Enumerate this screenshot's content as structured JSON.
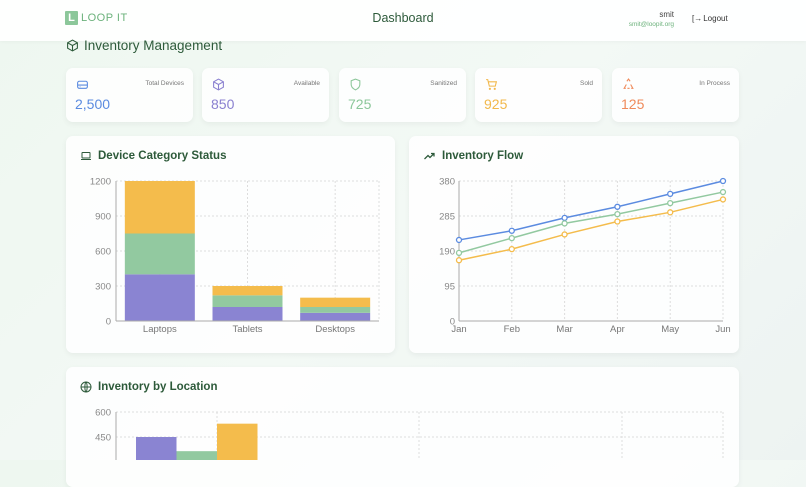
{
  "header": {
    "logo_letter": "L",
    "logo_text": "LOOP IT",
    "title": "Dashboard",
    "user_name": "smit",
    "user_email": "smit@loopit.org",
    "logout_label": "Logout"
  },
  "section_title": "Inventory Management",
  "stats": [
    {
      "label": "Total Devices",
      "value": "2,500",
      "color": "#5b8be0",
      "icon": "hard-drive-icon"
    },
    {
      "label": "Available",
      "value": "850",
      "color": "#8a80d0",
      "icon": "package-icon"
    },
    {
      "label": "Sanitized",
      "value": "725",
      "color": "#8cc79a",
      "icon": "shield-icon"
    },
    {
      "label": "Sold",
      "value": "925",
      "color": "#f2b84b",
      "icon": "cart-icon"
    },
    {
      "label": "In Process",
      "value": "125",
      "color": "#ef8a5a",
      "icon": "recycle-icon"
    }
  ],
  "chart_data": [
    {
      "type": "bar",
      "stacked": true,
      "title": "Device Category Status",
      "categories": [
        "Laptops",
        "Tablets",
        "Desktops"
      ],
      "ylim": [
        0,
        1200
      ],
      "yticks": [
        "0",
        "300",
        "600",
        "900",
        "1200"
      ],
      "grid": true,
      "series": [
        {
          "color": "#8a84d2",
          "values": [
            400,
            120,
            70
          ]
        },
        {
          "color": "#92c9a0",
          "values": [
            350,
            100,
            50
          ]
        },
        {
          "color": "#f4bc4c",
          "values": [
            450,
            80,
            80
          ]
        }
      ]
    },
    {
      "type": "line",
      "title": "Inventory Flow",
      "categories": [
        "Jan",
        "Feb",
        "Mar",
        "Apr",
        "May",
        "Jun"
      ],
      "ylim": [
        0,
        380
      ],
      "yticks": [
        "0",
        "95",
        "190",
        "285",
        "380"
      ],
      "grid": true,
      "series": [
        {
          "color": "#5b8be0",
          "values": [
            220,
            245,
            280,
            310,
            345,
            380
          ]
        },
        {
          "color": "#92c9a0",
          "values": [
            185,
            225,
            265,
            290,
            320,
            350
          ]
        },
        {
          "color": "#f4bc4c",
          "values": [
            165,
            195,
            235,
            270,
            295,
            330
          ]
        }
      ]
    },
    {
      "type": "bar",
      "title": "Inventory by Location",
      "ylim": [
        0,
        600
      ],
      "yticks": [
        "450",
        "600"
      ],
      "grid": true,
      "series": [
        {
          "color": "#8a84d2",
          "values": [
            450
          ]
        },
        {
          "color": "#92c9a0",
          "values": [
            365
          ]
        },
        {
          "color": "#f4bc4c",
          "values": [
            530
          ]
        }
      ]
    }
  ]
}
